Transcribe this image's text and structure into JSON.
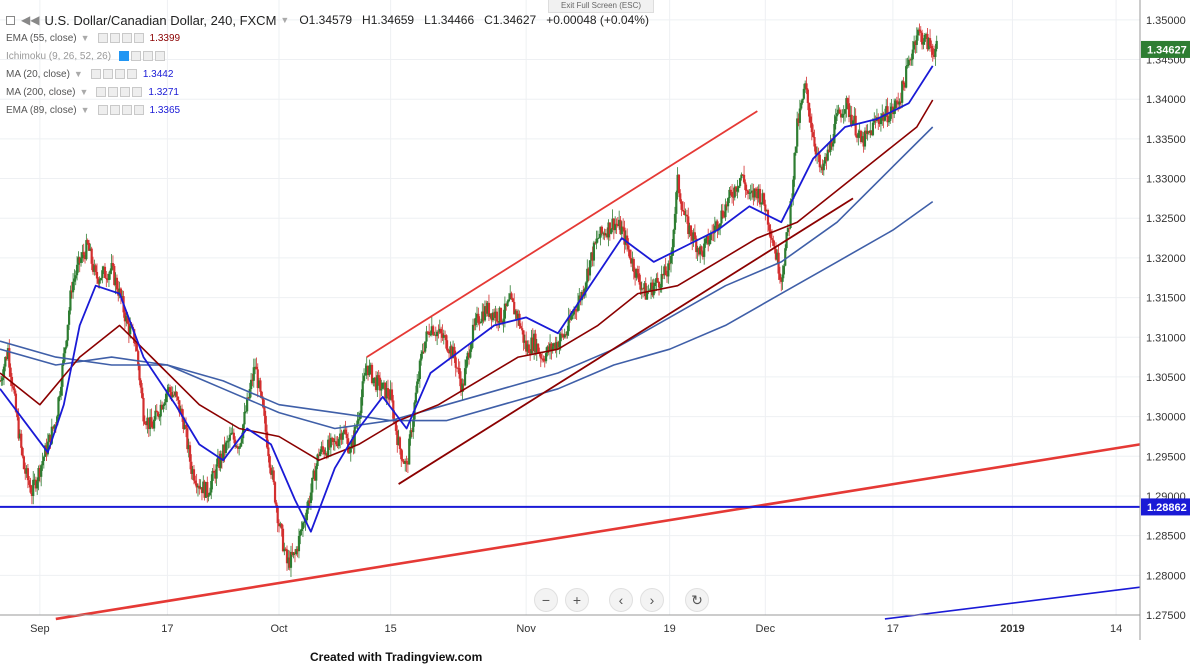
{
  "header": {
    "symbol_title": "U.S. Dollar/Canadian Dollar, 240, FXCM",
    "open": "O1.34579",
    "high": "H1.34659",
    "low": "L1.34466",
    "close": "C1.34627",
    "change": "+0.00048 (+0.04%)",
    "exit_fullscreen": "Exit Full Screen (ESC)"
  },
  "indicators": [
    {
      "name": "EMA (55, close)",
      "value": "1.3399",
      "color": "#8b0000"
    },
    {
      "name": "Ichimoku (9, 26, 52, 26)",
      "value": "",
      "color": "#2196f3"
    },
    {
      "name": "MA (20, close)",
      "value": "1.3442",
      "color": "#1a1ad6"
    },
    {
      "name": "MA (200, close)",
      "value": "1.3271",
      "color": "#1a1ad6"
    },
    {
      "name": "EMA (89, close)",
      "value": "1.3365",
      "color": "#1a1ad6"
    }
  ],
  "price_scale": {
    "labels": [
      "1.35000",
      "1.34500",
      "1.34000",
      "1.33500",
      "1.33000",
      "1.32500",
      "1.32000",
      "1.31500",
      "1.31000",
      "1.30500",
      "1.30000",
      "1.29500",
      "1.29000",
      "1.28500",
      "1.28000",
      "1.27500"
    ],
    "current_price_tag": "1.34627",
    "line_price_tag": "1.28862"
  },
  "time_axis": {
    "labels": [
      "Sep",
      "17",
      "Oct",
      "15",
      "Nov",
      "19",
      "Dec",
      "17",
      "2019",
      "14"
    ]
  },
  "footer": "Created with Tradingview.com",
  "chart_data": {
    "type": "candlestick",
    "title": "U.S. Dollar/Canadian Dollar, 240, FXCM",
    "ylim": [
      1.275,
      1.3525
    ],
    "x_range": [
      "2018-08-27",
      "2019-01-17"
    ],
    "x_tick_dates": [
      "2018-09-01",
      "2018-09-17",
      "2018-10-01",
      "2018-10-15",
      "2018-11-01",
      "2018-11-19",
      "2018-12-01",
      "2018-12-17",
      "2019-01-01",
      "2019-01-14"
    ],
    "grid": true,
    "colors": {
      "up": "#2e7d32",
      "down": "#d32f2f",
      "ma20": "#1a1ad6",
      "ema55": "#8b0000",
      "ema89": "#3f5fa8",
      "ma200": "#3f5fa8",
      "trendline": "#e53935",
      "support": "#1a1ad6"
    },
    "price_path": [
      [
        "2018-08-27",
        1.3045
      ],
      [
        "2018-08-28",
        1.3085
      ],
      [
        "2018-08-29",
        1.3005
      ],
      [
        "2018-08-30",
        1.2935
      ],
      [
        "2018-08-31",
        1.2905
      ],
      [
        "2018-09-03",
        1.2995
      ],
      [
        "2018-09-04",
        1.3075
      ],
      [
        "2018-09-05",
        1.3165
      ],
      [
        "2018-09-06",
        1.3195
      ],
      [
        "2018-09-07",
        1.3215
      ],
      [
        "2018-09-08",
        1.3175
      ],
      [
        "2018-09-10",
        1.3185
      ],
      [
        "2018-09-11",
        1.3155
      ],
      [
        "2018-09-12",
        1.3115
      ],
      [
        "2018-09-13",
        1.3095
      ],
      [
        "2018-09-14",
        1.3005
      ],
      [
        "2018-09-15",
        1.2985
      ],
      [
        "2018-09-17",
        1.3035
      ],
      [
        "2018-09-18",
        1.3025
      ],
      [
        "2018-09-19",
        1.2995
      ],
      [
        "2018-09-20",
        1.2935
      ],
      [
        "2018-09-21",
        1.2915
      ],
      [
        "2018-09-22",
        1.2905
      ],
      [
        "2018-09-24",
        1.2955
      ],
      [
        "2018-09-25",
        1.2975
      ],
      [
        "2018-09-26",
        1.2965
      ],
      [
        "2018-09-27",
        1.3015
      ],
      [
        "2018-09-28",
        1.3065
      ],
      [
        "2018-09-29",
        1.3005
      ],
      [
        "2018-09-30",
        1.2935
      ],
      [
        "2018-10-01",
        1.2865
      ],
      [
        "2018-10-02",
        1.2815
      ],
      [
        "2018-10-03",
        1.2825
      ],
      [
        "2018-10-04",
        1.2865
      ],
      [
        "2018-10-05",
        1.2905
      ],
      [
        "2018-10-06",
        1.2955
      ],
      [
        "2018-10-08",
        1.2965
      ],
      [
        "2018-10-09",
        1.2985
      ],
      [
        "2018-10-10",
        1.2955
      ],
      [
        "2018-10-11",
        1.3005
      ],
      [
        "2018-10-12",
        1.3065
      ],
      [
        "2018-10-13",
        1.3045
      ],
      [
        "2018-10-15",
        1.3025
      ],
      [
        "2018-10-16",
        1.2965
      ],
      [
        "2018-10-17",
        1.2935
      ],
      [
        "2018-10-18",
        1.3015
      ],
      [
        "2018-10-19",
        1.3085
      ],
      [
        "2018-10-20",
        1.3115
      ],
      [
        "2018-10-22",
        1.3095
      ],
      [
        "2018-10-23",
        1.3075
      ],
      [
        "2018-10-24",
        1.3035
      ],
      [
        "2018-10-25",
        1.3095
      ],
      [
        "2018-10-26",
        1.3125
      ],
      [
        "2018-10-27",
        1.3135
      ],
      [
        "2018-10-29",
        1.3125
      ],
      [
        "2018-10-30",
        1.3145
      ],
      [
        "2018-10-31",
        1.3125
      ],
      [
        "2018-11-01",
        1.3085
      ],
      [
        "2018-11-02",
        1.3095
      ],
      [
        "2018-11-03",
        1.3075
      ],
      [
        "2018-11-05",
        1.3095
      ],
      [
        "2018-11-06",
        1.3105
      ],
      [
        "2018-11-07",
        1.3135
      ],
      [
        "2018-11-08",
        1.3155
      ],
      [
        "2018-11-09",
        1.3195
      ],
      [
        "2018-11-10",
        1.3225
      ],
      [
        "2018-11-12",
        1.3245
      ],
      [
        "2018-11-13",
        1.3235
      ],
      [
        "2018-11-14",
        1.3205
      ],
      [
        "2018-11-15",
        1.3175
      ],
      [
        "2018-11-16",
        1.3155
      ],
      [
        "2018-11-17",
        1.3165
      ],
      [
        "2018-11-19",
        1.3185
      ],
      [
        "2018-11-20",
        1.3295
      ],
      [
        "2018-11-21",
        1.3245
      ],
      [
        "2018-11-22",
        1.3225
      ],
      [
        "2018-11-23",
        1.3205
      ],
      [
        "2018-11-24",
        1.3225
      ],
      [
        "2018-11-26",
        1.3265
      ],
      [
        "2018-11-27",
        1.3285
      ],
      [
        "2018-11-28",
        1.3305
      ],
      [
        "2018-11-29",
        1.3275
      ],
      [
        "2018-11-30",
        1.3285
      ],
      [
        "2018-12-01",
        1.3265
      ],
      [
        "2018-12-03",
        1.3175
      ],
      [
        "2018-12-04",
        1.3245
      ],
      [
        "2018-12-05",
        1.3365
      ],
      [
        "2018-12-06",
        1.3415
      ],
      [
        "2018-12-07",
        1.3355
      ],
      [
        "2018-12-08",
        1.3305
      ],
      [
        "2018-12-09",
        1.3335
      ],
      [
        "2018-12-10",
        1.3375
      ],
      [
        "2018-12-11",
        1.3395
      ],
      [
        "2018-12-12",
        1.3375
      ],
      [
        "2018-12-13",
        1.3345
      ],
      [
        "2018-12-14",
        1.3355
      ],
      [
        "2018-12-15",
        1.3375
      ],
      [
        "2018-12-17",
        1.3385
      ],
      [
        "2018-12-18",
        1.3405
      ],
      [
        "2018-12-19",
        1.3445
      ],
      [
        "2018-12-20",
        1.3485
      ],
      [
        "2018-12-21",
        1.3475
      ],
      [
        "2018-12-22",
        1.3463
      ]
    ],
    "ma20": [
      [
        "2018-08-27",
        1.3035
      ],
      [
        "2018-08-30",
        1.2995
      ],
      [
        "2018-09-02",
        1.2955
      ],
      [
        "2018-09-04",
        1.3015
      ],
      [
        "2018-09-06",
        1.3115
      ],
      [
        "2018-09-08",
        1.3165
      ],
      [
        "2018-09-11",
        1.3155
      ],
      [
        "2018-09-14",
        1.3075
      ],
      [
        "2018-09-18",
        1.3015
      ],
      [
        "2018-09-21",
        1.2965
      ],
      [
        "2018-09-24",
        1.2945
      ],
      [
        "2018-09-27",
        1.2985
      ],
      [
        "2018-09-30",
        1.2965
      ],
      [
        "2018-10-03",
        1.2895
      ],
      [
        "2018-10-05",
        1.2855
      ],
      [
        "2018-10-08",
        1.2935
      ],
      [
        "2018-10-11",
        1.2985
      ],
      [
        "2018-10-14",
        1.3025
      ],
      [
        "2018-10-17",
        1.2985
      ],
      [
        "2018-10-20",
        1.3055
      ],
      [
        "2018-10-24",
        1.3085
      ],
      [
        "2018-10-28",
        1.3115
      ],
      [
        "2018-11-01",
        1.3125
      ],
      [
        "2018-11-05",
        1.3105
      ],
      [
        "2018-11-09",
        1.3165
      ],
      [
        "2018-11-13",
        1.3225
      ],
      [
        "2018-11-17",
        1.3195
      ],
      [
        "2018-11-21",
        1.3215
      ],
      [
        "2018-11-25",
        1.3235
      ],
      [
        "2018-11-29",
        1.3265
      ],
      [
        "2018-12-03",
        1.3245
      ],
      [
        "2018-12-07",
        1.3325
      ],
      [
        "2018-12-11",
        1.3365
      ],
      [
        "2018-12-15",
        1.3375
      ],
      [
        "2018-12-19",
        1.3395
      ],
      [
        "2018-12-22",
        1.3442
      ]
    ],
    "ema55": [
      [
        "2018-08-27",
        1.3055
      ],
      [
        "2018-09-01",
        1.3015
      ],
      [
        "2018-09-06",
        1.3075
      ],
      [
        "2018-09-11",
        1.3115
      ],
      [
        "2018-09-16",
        1.3065
      ],
      [
        "2018-09-21",
        1.3015
      ],
      [
        "2018-09-26",
        1.2985
      ],
      [
        "2018-10-01",
        1.2975
      ],
      [
        "2018-10-06",
        1.2945
      ],
      [
        "2018-10-11",
        1.2965
      ],
      [
        "2018-10-16",
        1.2995
      ],
      [
        "2018-10-21",
        1.3015
      ],
      [
        "2018-10-26",
        1.3045
      ],
      [
        "2018-10-31",
        1.3075
      ],
      [
        "2018-11-05",
        1.3085
      ],
      [
        "2018-11-10",
        1.3115
      ],
      [
        "2018-11-15",
        1.3155
      ],
      [
        "2018-11-20",
        1.3165
      ],
      [
        "2018-11-25",
        1.3195
      ],
      [
        "2018-11-30",
        1.3225
      ],
      [
        "2018-12-05",
        1.3245
      ],
      [
        "2018-12-10",
        1.3285
      ],
      [
        "2018-12-15",
        1.3325
      ],
      [
        "2018-12-20",
        1.3365
      ],
      [
        "2018-12-22",
        1.3399
      ]
    ],
    "ema89": [
      [
        "2018-08-27",
        1.3085
      ],
      [
        "2018-09-03",
        1.3065
      ],
      [
        "2018-09-10",
        1.3075
      ],
      [
        "2018-09-17",
        1.3065
      ],
      [
        "2018-09-24",
        1.3035
      ],
      [
        "2018-10-01",
        1.3005
      ],
      [
        "2018-10-08",
        1.2985
      ],
      [
        "2018-10-15",
        1.2995
      ],
      [
        "2018-10-22",
        1.3015
      ],
      [
        "2018-10-29",
        1.3035
      ],
      [
        "2018-11-05",
        1.3055
      ],
      [
        "2018-11-12",
        1.3085
      ],
      [
        "2018-11-19",
        1.3125
      ],
      [
        "2018-11-26",
        1.3165
      ],
      [
        "2018-12-03",
        1.3195
      ],
      [
        "2018-12-10",
        1.3245
      ],
      [
        "2018-12-17",
        1.3315
      ],
      [
        "2018-12-22",
        1.3365
      ]
    ],
    "ma200": [
      [
        "2018-08-27",
        1.3095
      ],
      [
        "2018-09-03",
        1.3075
      ],
      [
        "2018-09-10",
        1.3065
      ],
      [
        "2018-09-17",
        1.3065
      ],
      [
        "2018-09-24",
        1.3045
      ],
      [
        "2018-10-01",
        1.3015
      ],
      [
        "2018-10-08",
        1.3005
      ],
      [
        "2018-10-15",
        1.2995
      ],
      [
        "2018-10-22",
        1.2995
      ],
      [
        "2018-10-29",
        1.3015
      ],
      [
        "2018-11-05",
        1.3035
      ],
      [
        "2018-11-12",
        1.3065
      ],
      [
        "2018-11-19",
        1.3085
      ],
      [
        "2018-11-26",
        1.3115
      ],
      [
        "2018-12-03",
        1.3155
      ],
      [
        "2018-12-10",
        1.3195
      ],
      [
        "2018-12-17",
        1.3235
      ],
      [
        "2018-12-22",
        1.3271
      ]
    ],
    "trendlines": [
      {
        "name": "channel-upper",
        "color": "#e53935",
        "from": [
          "2018-10-12",
          1.3075
        ],
        "to": [
          "2018-11-30",
          1.3385
        ]
      },
      {
        "name": "channel-lower",
        "color": "#8b0000",
        "from": [
          "2018-10-16",
          1.2915
        ],
        "to": [
          "2018-12-12",
          1.3275
        ]
      },
      {
        "name": "long-term-support",
        "color": "#e53935",
        "from": [
          "2018-09-03",
          1.2745
        ],
        "to": [
          "2019-01-17",
          1.2965
        ]
      },
      {
        "name": "lower-blue",
        "color": "#1a1ad6",
        "from": [
          "2018-12-16",
          1.2745
        ],
        "to": [
          "2019-01-17",
          1.2785
        ]
      }
    ],
    "horizontal_lines": [
      {
        "name": "support-1.28862",
        "value": 1.28862,
        "color": "#1a1ad6"
      }
    ]
  }
}
